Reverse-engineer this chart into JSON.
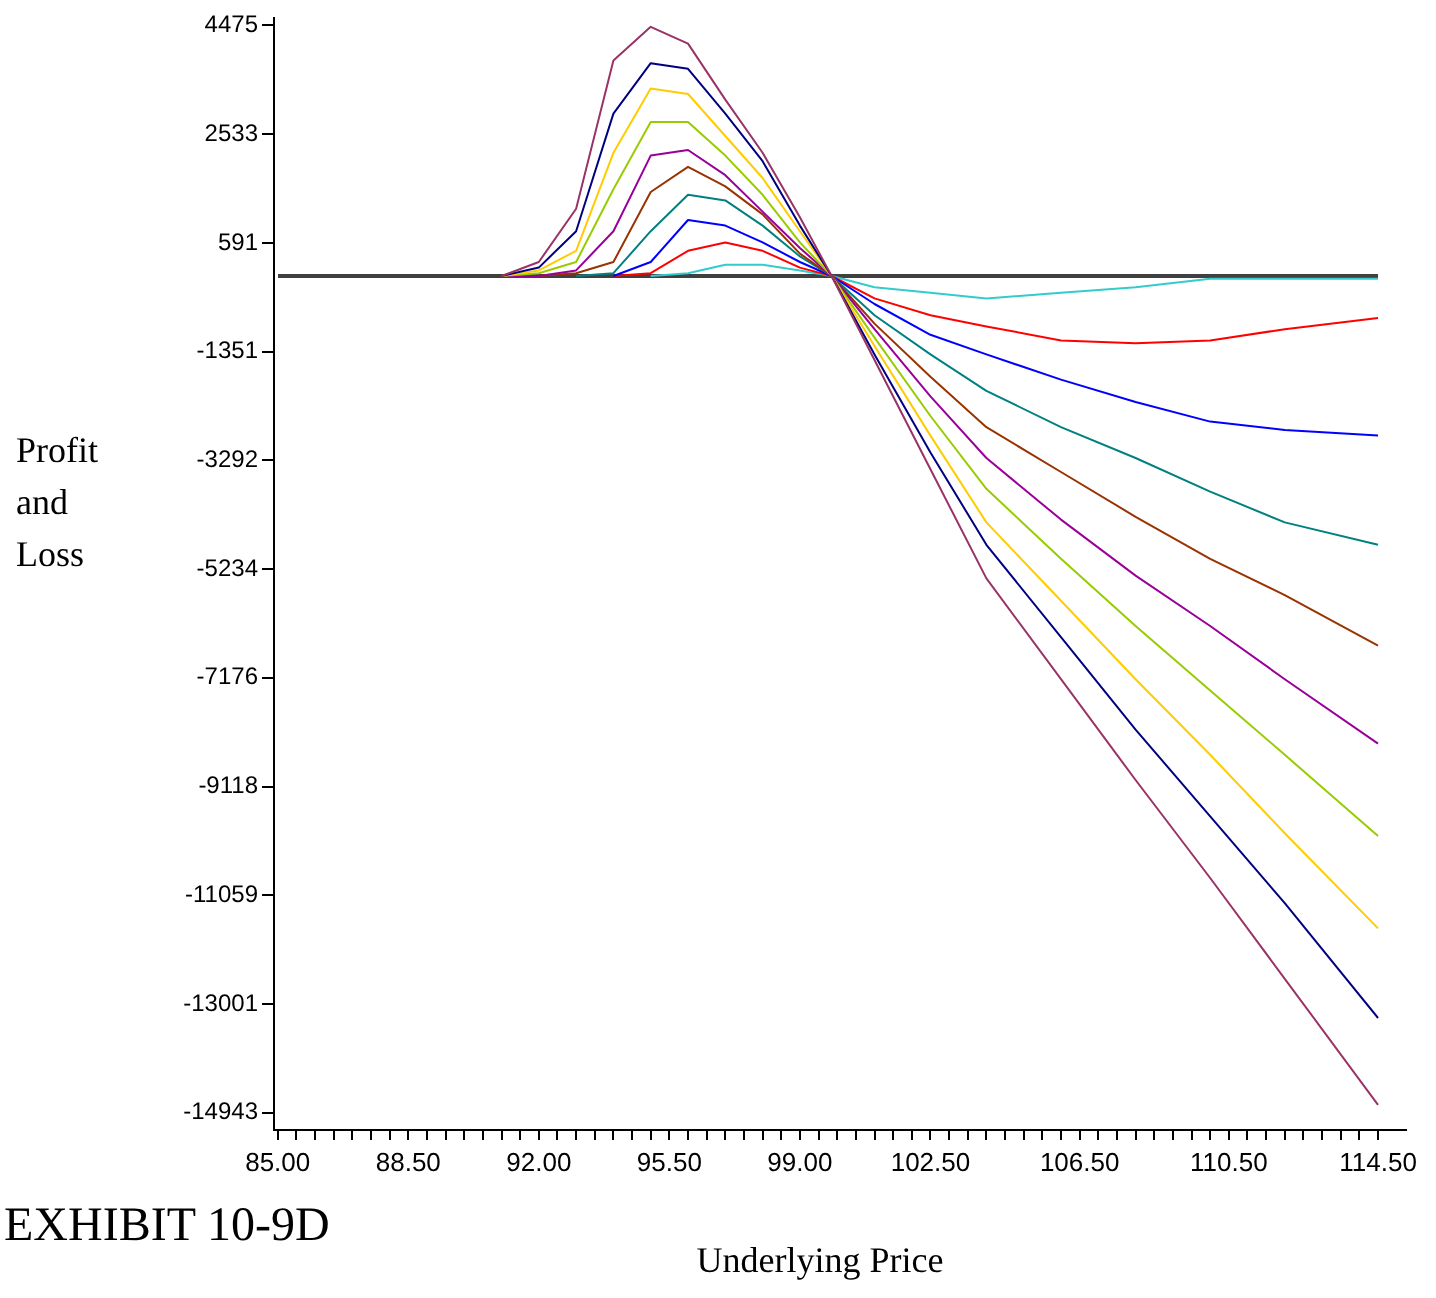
{
  "chart_data": {
    "type": "line",
    "xlabel": "Underlying Price",
    "ylabel": "Profit and Loss",
    "annotations": [
      "EXHIBIT 10-9D"
    ],
    "x": [
      91,
      92,
      93,
      94,
      95,
      96,
      97,
      98,
      99,
      99.85,
      101,
      102.5,
      104,
      106,
      108,
      110,
      112,
      114.5
    ],
    "series": [
      {
        "color": "#993366",
        "values": [
          0,
          250,
          1200,
          3850,
          4450,
          4150,
          3150,
          2200,
          1050,
          0,
          -1500,
          -3450,
          -5400,
          -7200,
          -9000,
          -10750,
          -12550,
          -14800
        ]
      },
      {
        "color": "#000080",
        "values": [
          0,
          150,
          800,
          2900,
          3800,
          3700,
          2900,
          2050,
          900,
          0,
          -1400,
          -3150,
          -4800,
          -6450,
          -8100,
          -9650,
          -11200,
          -13250
        ]
      },
      {
        "color": "#ffcc00",
        "values": [
          0,
          100,
          450,
          2200,
          3350,
          3250,
          2500,
          1750,
          800,
          0,
          -1250,
          -2850,
          -4400,
          -5800,
          -7200,
          -8550,
          -9950,
          -11650
        ]
      },
      {
        "color": "#99cc00",
        "values": [
          0,
          50,
          250,
          1550,
          2750,
          2750,
          2150,
          1450,
          600,
          0,
          -1100,
          -2500,
          -3800,
          -5050,
          -6250,
          -7400,
          -8550,
          -10000
        ]
      },
      {
        "color": "#990099",
        "values": [
          0,
          0,
          100,
          800,
          2150,
          2250,
          1800,
          1150,
          500,
          0,
          -950,
          -2150,
          -3250,
          -4350,
          -5350,
          -6250,
          -7200,
          -8350
        ]
      },
      {
        "color": "#993300",
        "values": [
          null,
          0,
          50,
          250,
          1500,
          1950,
          1600,
          1100,
          400,
          0,
          -850,
          -1800,
          -2700,
          -3500,
          -4300,
          -5050,
          -5700,
          -6600
        ]
      },
      {
        "color": "#008080",
        "values": [
          null,
          null,
          0,
          50,
          800,
          1450,
          1350,
          900,
          350,
          0,
          -700,
          -1400,
          -2050,
          -2700,
          -3250,
          -3850,
          -4400,
          -4800
        ]
      },
      {
        "color": "#0000ff",
        "values": [
          null,
          null,
          null,
          0,
          250,
          1000,
          900,
          600,
          250,
          0,
          -500,
          -1050,
          -1400,
          -1850,
          -2250,
          -2600,
          -2750,
          -2850
        ]
      },
      {
        "color": "#ff0000",
        "values": [
          null,
          null,
          null,
          0,
          50,
          450,
          600,
          450,
          150,
          0,
          -400,
          -700,
          -900,
          -1150,
          -1200,
          -1150,
          -950,
          -750
        ]
      },
      {
        "color": "#33cccc",
        "values": [
          null,
          null,
          null,
          null,
          0,
          50,
          200,
          200,
          100,
          0,
          -200,
          -300,
          -400,
          -300,
          -200,
          -50,
          -50,
          -50
        ]
      }
    ],
    "ref_lines": [
      {
        "axis": "y",
        "value": 0,
        "color": "#404040"
      }
    ],
    "xlim": [
      84.9,
      115.25
    ],
    "ylim": [
      -15250,
      4600
    ],
    "xticks": [
      {
        "value": 85,
        "label": "85.00"
      },
      {
        "value": 85.5,
        "label": null
      },
      {
        "value": 86,
        "label": null
      },
      {
        "value": 86.5,
        "label": null
      },
      {
        "value": 87,
        "label": null
      },
      {
        "value": 87.5,
        "label": null
      },
      {
        "value": 88,
        "label": null
      },
      {
        "value": 88.5,
        "label": "88.50"
      },
      {
        "value": 89,
        "label": null
      },
      {
        "value": 89.5,
        "label": null
      },
      {
        "value": 90,
        "label": null
      },
      {
        "value": 90.5,
        "label": null
      },
      {
        "value": 91,
        "label": null
      },
      {
        "value": 91.5,
        "label": null
      },
      {
        "value": 92,
        "label": "92.00"
      },
      {
        "value": 92.5,
        "label": null
      },
      {
        "value": 93,
        "label": null
      },
      {
        "value": 93.5,
        "label": null
      },
      {
        "value": 94,
        "label": null
      },
      {
        "value": 94.5,
        "label": null
      },
      {
        "value": 95,
        "label": null
      },
      {
        "value": 95.5,
        "label": "95.50"
      },
      {
        "value": 96,
        "label": null
      },
      {
        "value": 96.5,
        "label": null
      },
      {
        "value": 97,
        "label": null
      },
      {
        "value": 97.5,
        "label": null
      },
      {
        "value": 98,
        "label": null
      },
      {
        "value": 98.5,
        "label": null
      },
      {
        "value": 99,
        "label": "99.00"
      },
      {
        "value": 99.5,
        "label": null
      },
      {
        "value": 100,
        "label": null
      },
      {
        "value": 100.5,
        "label": null
      },
      {
        "value": 101,
        "label": null
      },
      {
        "value": 101.5,
        "label": null
      },
      {
        "value": 102,
        "label": null
      },
      {
        "value": 102.5,
        "label": "102.50"
      },
      {
        "value": 103,
        "label": null
      },
      {
        "value": 103.5,
        "label": null
      },
      {
        "value": 104,
        "label": null
      },
      {
        "value": 104.5,
        "label": null
      },
      {
        "value": 105,
        "label": null
      },
      {
        "value": 105.5,
        "label": null
      },
      {
        "value": 106,
        "label": null
      },
      {
        "value": 106.5,
        "label": "106.50"
      },
      {
        "value": 107,
        "label": null
      },
      {
        "value": 107.5,
        "label": null
      },
      {
        "value": 108,
        "label": null
      },
      {
        "value": 108.5,
        "label": null
      },
      {
        "value": 109,
        "label": null
      },
      {
        "value": 109.5,
        "label": null
      },
      {
        "value": 110,
        "label": null
      },
      {
        "value": 110.5,
        "label": "110.50"
      },
      {
        "value": 111,
        "label": null
      },
      {
        "value": 111.5,
        "label": null
      },
      {
        "value": 112,
        "label": null
      },
      {
        "value": 112.5,
        "label": null
      },
      {
        "value": 113,
        "label": null
      },
      {
        "value": 113.5,
        "label": null
      },
      {
        "value": 114,
        "label": null
      },
      {
        "value": 114.5,
        "label": "114.50"
      }
    ],
    "yticks": [
      4475,
      2533,
      591,
      -1351,
      -3292,
      -5234,
      -7176,
      -9118,
      -11059,
      -13001,
      -14943
    ],
    "marker": "none",
    "line_style": "solid",
    "legend": false
  }
}
